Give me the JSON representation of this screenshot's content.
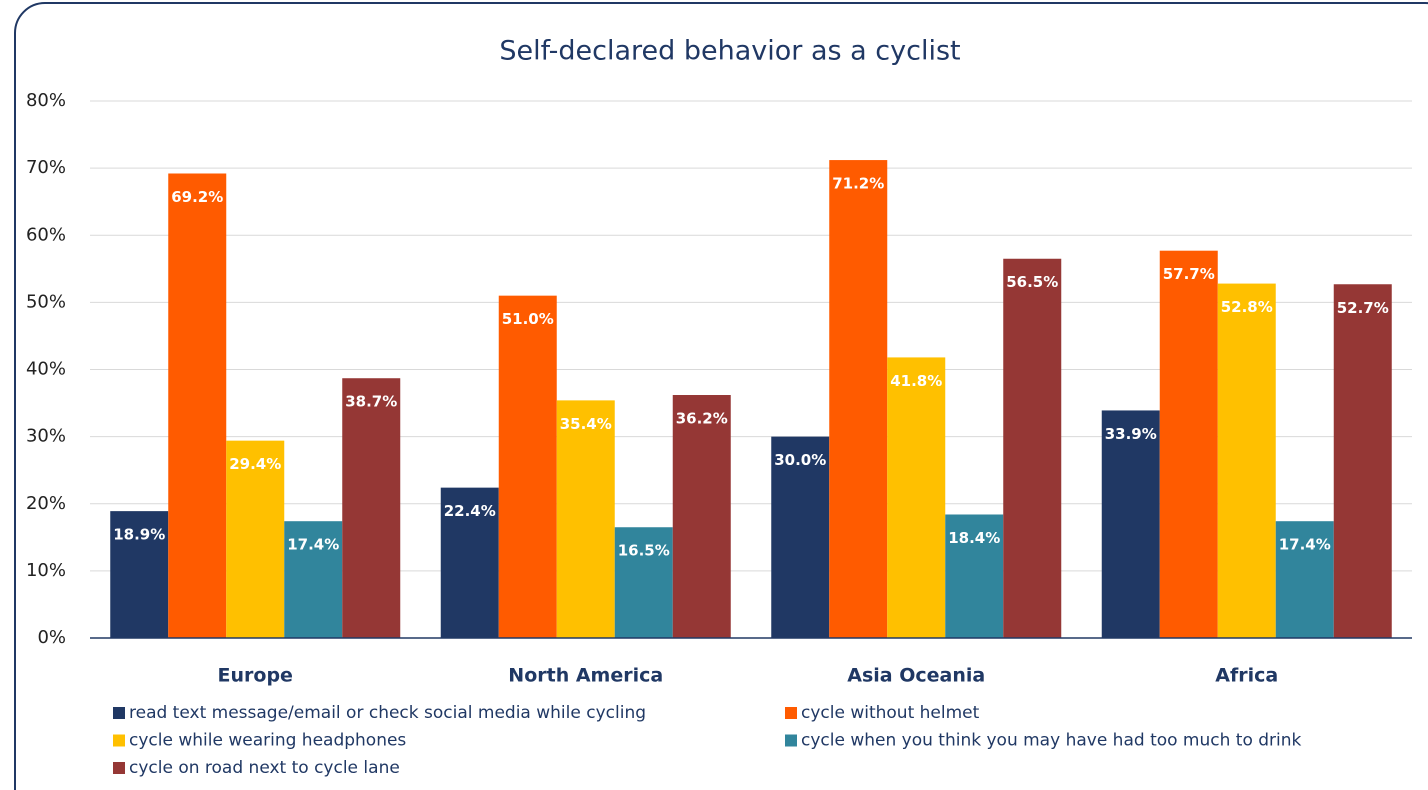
{
  "chart_data": {
    "type": "bar",
    "title": "Self-declared behavior as a cyclist",
    "categories": [
      "Europe",
      "North America",
      "Asia Oceania",
      "Africa"
    ],
    "series": [
      {
        "name": "read text message/email or check social media while cycling",
        "color": "#203864",
        "values": [
          18.9,
          22.4,
          30.0,
          33.9
        ],
        "value_labels": [
          "18.9%",
          "22.4%",
          "30.0%",
          "33.9%"
        ]
      },
      {
        "name": "cycle without helmet",
        "color": "#ff5b00",
        "values": [
          69.2,
          51.0,
          71.2,
          57.7
        ],
        "value_labels": [
          "69.2%",
          "51.0%",
          "71.2%",
          "57.7%"
        ]
      },
      {
        "name": "cycle while wearing headphones",
        "color": "#ffc000",
        "values": [
          29.4,
          35.4,
          41.8,
          52.8
        ],
        "value_labels": [
          "29.4%",
          "35.4%",
          "41.8%",
          "52.8%"
        ]
      },
      {
        "name": "cycle when you think you may have had too much to drink",
        "color": "#31859c",
        "values": [
          17.4,
          16.5,
          18.4,
          17.4
        ],
        "value_labels": [
          "17.4%",
          "16.5%",
          "18.4%",
          "17.4%"
        ]
      },
      {
        "name": "cycle on road next to cycle lane",
        "color": "#953735",
        "values": [
          38.7,
          36.2,
          56.5,
          52.7
        ],
        "value_labels": [
          "38.7%",
          "36.2%",
          "56.5%",
          "52.7%"
        ]
      }
    ],
    "ylim": [
      0,
      80
    ],
    "yticks": [
      {
        "value": 0,
        "label": "0%"
      },
      {
        "value": 10,
        "label": "10%"
      },
      {
        "value": 20,
        "label": "20%"
      },
      {
        "value": 30,
        "label": "30%"
      },
      {
        "value": 40,
        "label": "40%"
      },
      {
        "value": 50,
        "label": "50%"
      },
      {
        "value": 60,
        "label": "60%"
      },
      {
        "value": 70,
        "label": "70%"
      },
      {
        "value": 80,
        "label": "80%"
      }
    ],
    "grid": true
  }
}
